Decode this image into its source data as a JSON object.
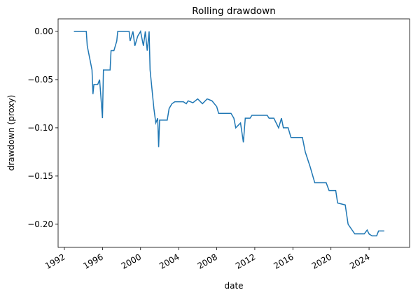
{
  "chart_data": {
    "type": "line",
    "title": "Rolling drawdown",
    "x_label": "date",
    "y_label": "drawdown (proxy)",
    "x": [
      1993.0,
      1994.3,
      1994.4,
      1994.6,
      1994.9,
      1995.0,
      1995.1,
      1995.5,
      1995.7,
      1996.0,
      1996.1,
      1996.8,
      1996.9,
      1997.2,
      1997.5,
      1997.6,
      1998.8,
      1998.9,
      1999.2,
      1999.4,
      1999.7,
      2000.0,
      2000.3,
      2000.5,
      2000.7,
      2000.9,
      2001.0,
      2001.2,
      2001.4,
      2001.6,
      2001.8,
      2001.9,
      2002.0,
      2002.8,
      2003.0,
      2003.3,
      2003.6,
      2004.5,
      2004.8,
      2005.0,
      2005.5,
      2006.0,
      2006.5,
      2007.0,
      2007.5,
      2008.0,
      2008.2,
      2009.5,
      2009.8,
      2010.0,
      2010.5,
      2010.8,
      2011.0,
      2011.5,
      2011.7,
      2013.3,
      2013.5,
      2014.0,
      2014.5,
      2014.8,
      2015.0,
      2015.5,
      2015.8,
      2017.0,
      2017.3,
      2017.8,
      2018.3,
      2019.5,
      2019.8,
      2020.5,
      2020.7,
      2021.5,
      2021.8,
      2022.5,
      2023.5,
      2023.8,
      2024.0,
      2024.3,
      2024.8,
      2025.0,
      2025.6
    ],
    "series": [
      {
        "name": "drawdown",
        "color": "#1f77b4",
        "values": [
          0,
          0,
          -0.015,
          -0.025,
          -0.04,
          -0.065,
          -0.055,
          -0.055,
          -0.05,
          -0.09,
          -0.04,
          -0.04,
          -0.02,
          -0.02,
          -0.01,
          0,
          0,
          -0.01,
          0,
          -0.015,
          -0.005,
          0,
          -0.015,
          0,
          -0.02,
          0,
          -0.04,
          -0.06,
          -0.08,
          -0.095,
          -0.09,
          -0.12,
          -0.092,
          -0.092,
          -0.08,
          -0.075,
          -0.073,
          -0.073,
          -0.075,
          -0.072,
          -0.074,
          -0.07,
          -0.075,
          -0.07,
          -0.072,
          -0.078,
          -0.085,
          -0.085,
          -0.09,
          -0.1,
          -0.095,
          -0.115,
          -0.09,
          -0.09,
          -0.087,
          -0.087,
          -0.09,
          -0.09,
          -0.1,
          -0.09,
          -0.1,
          -0.1,
          -0.11,
          -0.11,
          -0.125,
          -0.14,
          -0.157,
          -0.157,
          -0.165,
          -0.165,
          -0.178,
          -0.18,
          -0.2,
          -0.21,
          -0.21,
          -0.206,
          -0.21,
          -0.212,
          -0.212,
          -0.207,
          -0.207
        ]
      }
    ],
    "xlim": [
      1991.34,
      2028.26
    ],
    "xticks": [
      1992,
      1996,
      2000,
      2004,
      2008,
      2012,
      2016,
      2020,
      2024
    ],
    "ylim": [
      -0.224,
      0.013
    ],
    "yticks": [
      {
        "value": 0,
        "label": "0.00"
      },
      {
        "value": -0.05,
        "label": "−0.05"
      },
      {
        "value": -0.1,
        "label": "−0.10"
      },
      {
        "value": -0.15,
        "label": "−0.15"
      },
      {
        "value": -0.2,
        "label": "−0.20"
      }
    ]
  }
}
